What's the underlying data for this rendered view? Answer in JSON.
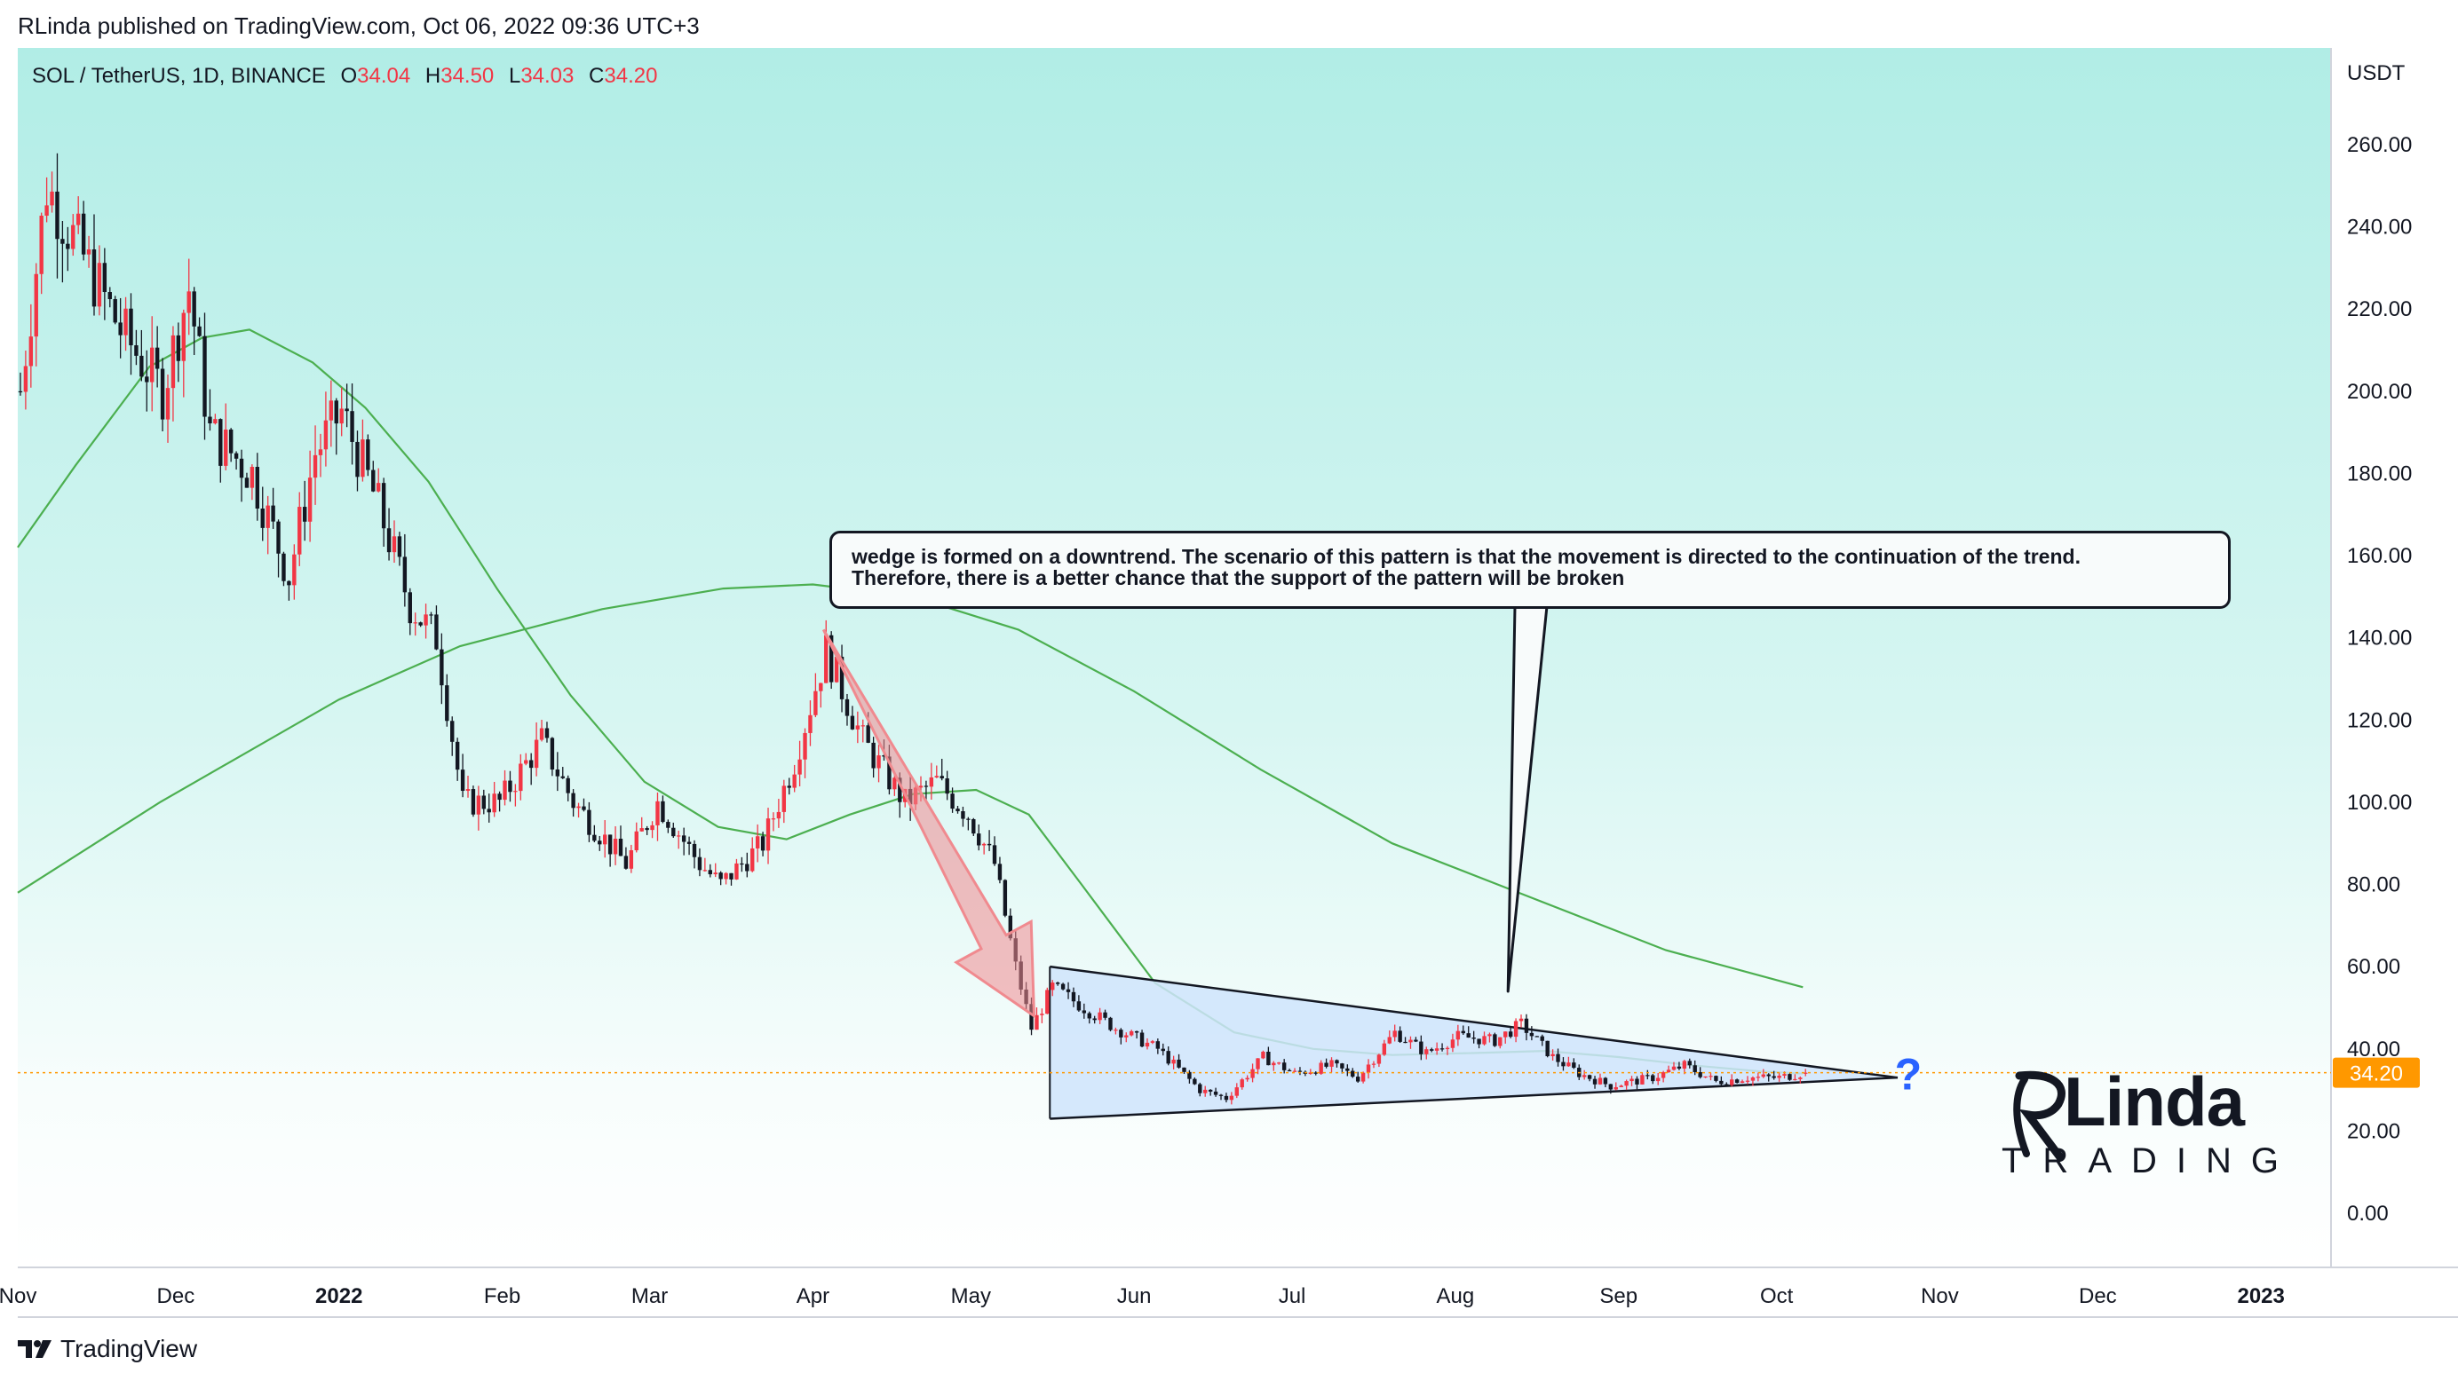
{
  "header": {
    "published": "RLinda published on TradingView.com, Oct 06, 2022 09:36 UTC+3"
  },
  "symbol": {
    "name": "SOL / TetherUS, 1D, BINANCE",
    "o_label": "O",
    "o_value": "34.04",
    "h_label": "H",
    "h_value": "34.50",
    "l_label": "L",
    "l_value": "34.03",
    "c_label": "C",
    "c_value": "34.20"
  },
  "annotation": {
    "line1": "wedge is formed on a downtrend. The scenario of this pattern is that the movement is directed to the continuation of the trend.",
    "line2": "Therefore, there is a better chance that the support of the pattern will be broken"
  },
  "question_mark": "?",
  "logo": {
    "name": "Linda",
    "sub": "TRADING"
  },
  "footer": {
    "brand": "TradingView"
  },
  "colors": {
    "up": "#f23645",
    "down": "#131722",
    "ma_fast": "#4caf50",
    "ma_slow": "#4caf50",
    "price_line": "#ff9800",
    "wedge_fill": "#cfe4fb",
    "arrow": "#f08a8f"
  },
  "chart_data": {
    "type": "candlestick",
    "title": "SOL / TetherUS, 1D, BINANCE",
    "ylabel": "USDT",
    "ylim": [
      -12,
      270
    ],
    "y_ticks": [
      "260.00",
      "240.00",
      "220.00",
      "200.00",
      "180.00",
      "160.00",
      "140.00",
      "120.00",
      "100.00",
      "80.00",
      "60.00",
      "40.00",
      "20.00",
      "0.00"
    ],
    "x_ticks": [
      "Nov",
      "Dec",
      "2022",
      "Feb",
      "Mar",
      "Apr",
      "May",
      "Jun",
      "Jul",
      "Aug",
      "Sep",
      "Oct",
      "Nov",
      "Dec",
      "2023"
    ],
    "last_price": "34.20",
    "price_path": [
      {
        "date": "2021-11-01",
        "close": 200
      },
      {
        "date": "2021-11-06",
        "close": 250
      },
      {
        "date": "2021-11-10",
        "close": 240
      },
      {
        "date": "2021-11-20",
        "close": 215
      },
      {
        "date": "2021-11-28",
        "close": 200
      },
      {
        "date": "2021-12-03",
        "close": 225
      },
      {
        "date": "2021-12-07",
        "close": 190
      },
      {
        "date": "2021-12-15",
        "close": 180
      },
      {
        "date": "2021-12-22",
        "close": 155
      },
      {
        "date": "2021-12-27",
        "close": 185
      },
      {
        "date": "2022-01-01",
        "close": 195
      },
      {
        "date": "2022-01-08",
        "close": 172
      },
      {
        "date": "2022-01-14",
        "close": 148
      },
      {
        "date": "2022-01-19",
        "close": 140
      },
      {
        "date": "2022-01-24",
        "close": 100
      },
      {
        "date": "2022-01-31",
        "close": 100
      },
      {
        "date": "2022-02-08",
        "close": 115
      },
      {
        "date": "2022-02-14",
        "close": 100
      },
      {
        "date": "2022-02-24",
        "close": 85
      },
      {
        "date": "2022-03-02",
        "close": 100
      },
      {
        "date": "2022-03-10",
        "close": 85
      },
      {
        "date": "2022-03-14",
        "close": 80
      },
      {
        "date": "2022-03-22",
        "close": 90
      },
      {
        "date": "2022-03-28",
        "close": 110
      },
      {
        "date": "2022-04-03",
        "close": 137
      },
      {
        "date": "2022-04-10",
        "close": 115
      },
      {
        "date": "2022-04-18",
        "close": 100
      },
      {
        "date": "2022-04-24",
        "close": 105
      },
      {
        "date": "2022-04-30",
        "close": 97
      },
      {
        "date": "2022-05-05",
        "close": 85
      },
      {
        "date": "2022-05-09",
        "close": 60
      },
      {
        "date": "2022-05-12",
        "close": 45
      },
      {
        "date": "2022-05-16",
        "close": 55
      },
      {
        "date": "2022-05-28",
        "close": 45
      },
      {
        "date": "2022-06-05",
        "close": 40
      },
      {
        "date": "2022-06-13",
        "close": 30
      },
      {
        "date": "2022-06-18",
        "close": 28
      },
      {
        "date": "2022-06-25",
        "close": 38
      },
      {
        "date": "2022-07-01",
        "close": 34
      },
      {
        "date": "2022-07-08",
        "close": 36
      },
      {
        "date": "2022-07-13",
        "close": 33
      },
      {
        "date": "2022-07-20",
        "close": 44
      },
      {
        "date": "2022-07-26",
        "close": 39
      },
      {
        "date": "2022-08-01",
        "close": 43
      },
      {
        "date": "2022-08-08",
        "close": 42
      },
      {
        "date": "2022-08-13",
        "close": 46
      },
      {
        "date": "2022-08-19",
        "close": 38
      },
      {
        "date": "2022-08-24",
        "close": 34
      },
      {
        "date": "2022-08-30",
        "close": 31
      },
      {
        "date": "2022-09-07",
        "close": 33
      },
      {
        "date": "2022-09-13",
        "close": 36
      },
      {
        "date": "2022-09-19",
        "close": 32
      },
      {
        "date": "2022-09-25",
        "close": 33
      },
      {
        "date": "2022-10-01",
        "close": 33
      },
      {
        "date": "2022-10-06",
        "close": 34.2
      }
    ],
    "ma_50": [
      {
        "date": "2021-11-01",
        "value": 162
      },
      {
        "date": "2021-11-12",
        "value": 182
      },
      {
        "date": "2021-11-26",
        "value": 206
      },
      {
        "date": "2021-12-06",
        "value": 213
      },
      {
        "date": "2021-12-15",
        "value": 215
      },
      {
        "date": "2021-12-27",
        "value": 207
      },
      {
        "date": "2022-01-06",
        "value": 196
      },
      {
        "date": "2022-01-18",
        "value": 178
      },
      {
        "date": "2022-01-31",
        "value": 152
      },
      {
        "date": "2022-02-14",
        "value": 126
      },
      {
        "date": "2022-02-28",
        "value": 105
      },
      {
        "date": "2022-03-14",
        "value": 94
      },
      {
        "date": "2022-03-27",
        "value": 91
      },
      {
        "date": "2022-04-08",
        "value": 97
      },
      {
        "date": "2022-04-20",
        "value": 102
      },
      {
        "date": "2022-05-02",
        "value": 103
      },
      {
        "date": "2022-05-12",
        "value": 97
      },
      {
        "date": "2022-05-22",
        "value": 80
      },
      {
        "date": "2022-06-05",
        "value": 56
      },
      {
        "date": "2022-06-20",
        "value": 44
      },
      {
        "date": "2022-07-05",
        "value": 40
      },
      {
        "date": "2022-07-20",
        "value": 38.5
      },
      {
        "date": "2022-08-05",
        "value": 39
      },
      {
        "date": "2022-08-18",
        "value": 39.5
      },
      {
        "date": "2022-09-01",
        "value": 38
      },
      {
        "date": "2022-09-15",
        "value": 36
      },
      {
        "date": "2022-09-28",
        "value": 34.5
      },
      {
        "date": "2022-10-06",
        "value": 34
      }
    ],
    "ma_200": [
      {
        "date": "2021-11-01",
        "value": 78
      },
      {
        "date": "2021-11-28",
        "value": 100
      },
      {
        "date": "2022-01-01",
        "value": 125
      },
      {
        "date": "2022-01-24",
        "value": 138
      },
      {
        "date": "2022-02-20",
        "value": 147
      },
      {
        "date": "2022-03-15",
        "value": 152
      },
      {
        "date": "2022-04-01",
        "value": 153
      },
      {
        "date": "2022-04-20",
        "value": 150
      },
      {
        "date": "2022-05-10",
        "value": 142
      },
      {
        "date": "2022-06-01",
        "value": 127
      },
      {
        "date": "2022-06-25",
        "value": 108
      },
      {
        "date": "2022-07-20",
        "value": 90
      },
      {
        "date": "2022-08-15",
        "value": 77
      },
      {
        "date": "2022-09-10",
        "value": 64
      },
      {
        "date": "2022-10-06",
        "value": 55
      }
    ],
    "wedge": {
      "upper": [
        {
          "date": "2022-05-16",
          "value": 60
        },
        {
          "date": "2022-10-24",
          "value": 33
        }
      ],
      "lower": [
        {
          "date": "2022-05-16",
          "value": 23
        },
        {
          "date": "2022-10-24",
          "value": 33
        }
      ]
    },
    "arrow": {
      "from": {
        "date": "2022-04-03",
        "value": 142
      },
      "to": {
        "date": "2022-05-13",
        "value": 48
      }
    },
    "callout_target": {
      "date": "2022-08-11",
      "value": 54
    },
    "question_mark_at": {
      "date": "2022-10-26",
      "value": 34
    },
    "current_price_line": 34.2
  }
}
